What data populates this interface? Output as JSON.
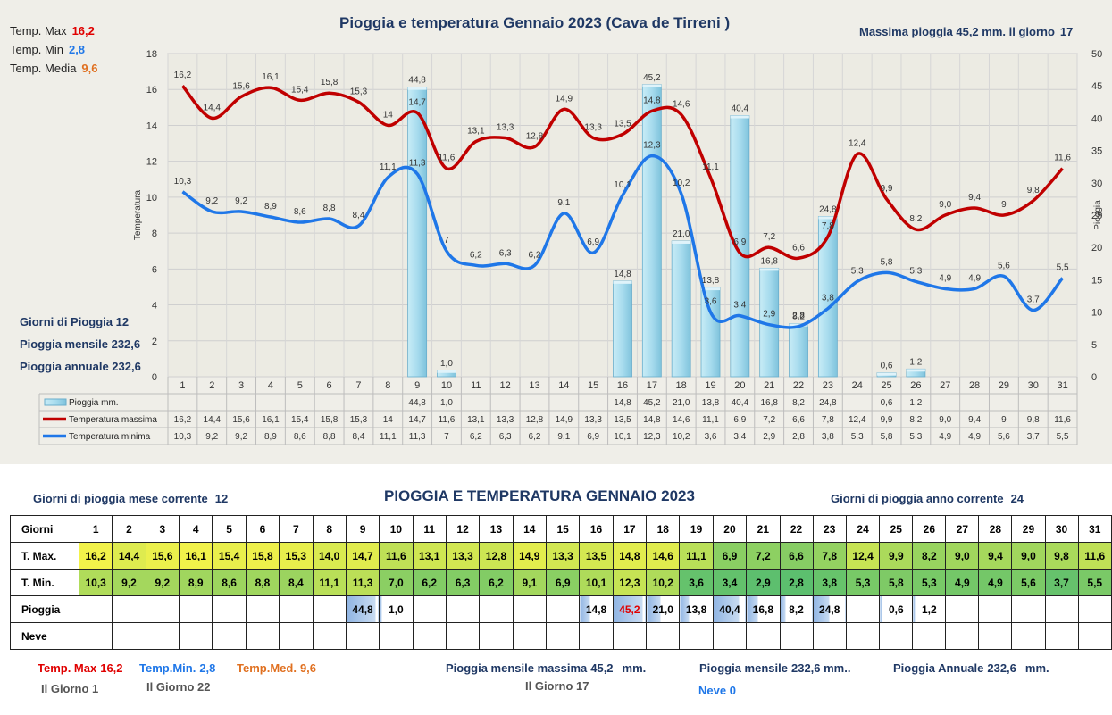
{
  "chart_data": {
    "type": "bar",
    "title": "Pioggia e temperatura Gennaio 2023 (Cava de Tirreni )",
    "categories": [
      "1",
      "2",
      "3",
      "4",
      "5",
      "6",
      "7",
      "8",
      "9",
      "10",
      "11",
      "12",
      "13",
      "14",
      "15",
      "16",
      "17",
      "18",
      "19",
      "20",
      "21",
      "22",
      "23",
      "24",
      "25",
      "26",
      "27",
      "28",
      "29",
      "30",
      "31"
    ],
    "ylabel": "Temperatura",
    "y2label": "Pioggia",
    "ylim": [
      0,
      18
    ],
    "y2lim": [
      0,
      50
    ],
    "yticks": [
      "0",
      "2",
      "4",
      "6",
      "8",
      "10",
      "12",
      "14",
      "16",
      "18"
    ],
    "y2ticks": [
      "0",
      "5",
      "10",
      "15",
      "20",
      "25",
      "30",
      "35",
      "40",
      "45",
      "50"
    ],
    "grid": true,
    "series": [
      {
        "name": "Pioggia mm.",
        "kind": "bar",
        "axis": "right",
        "color": "#9fd6e8",
        "labels": [
          "",
          "",
          "",
          "",
          "",
          "",
          "",
          "",
          "44,8",
          "1,0",
          "",
          "",
          "",
          "",
          "",
          "14,8",
          "45,2",
          "21,0",
          "13,8",
          "40,4",
          "16,8",
          "8,2",
          "24,8",
          "",
          "0,6",
          "1,2",
          "",
          "",
          "",
          "",
          ""
        ],
        "values": [
          null,
          null,
          null,
          null,
          null,
          null,
          null,
          null,
          44.8,
          1.0,
          null,
          null,
          null,
          null,
          null,
          14.8,
          45.2,
          21.0,
          13.8,
          40.4,
          16.8,
          8.2,
          24.8,
          null,
          0.6,
          1.2,
          null,
          null,
          null,
          null,
          null
        ]
      },
      {
        "name": "Temperatura massima",
        "kind": "line",
        "axis": "left",
        "color": "#c00000",
        "labels": [
          "16,2",
          "14,4",
          "15,6",
          "16,1",
          "15,4",
          "15,8",
          "15,3",
          "14",
          "14,7",
          "11,6",
          "13,1",
          "13,3",
          "12,8",
          "14,9",
          "13,3",
          "13,5",
          "14,8",
          "14,6",
          "11,1",
          "6,9",
          "7,2",
          "6,6",
          "7,8",
          "12,4",
          "9,9",
          "8,2",
          "9,0",
          "9,4",
          "9",
          "9,8",
          "11,6"
        ],
        "values": [
          16.2,
          14.4,
          15.6,
          16.1,
          15.4,
          15.8,
          15.3,
          14,
          14.7,
          11.6,
          13.1,
          13.3,
          12.8,
          14.9,
          13.3,
          13.5,
          14.8,
          14.6,
          11.1,
          6.9,
          7.2,
          6.6,
          7.8,
          12.4,
          9.9,
          8.2,
          9.0,
          9.4,
          9,
          9.8,
          11.6
        ]
      },
      {
        "name": "Temperatura minima",
        "kind": "line",
        "axis": "left",
        "color": "#1f77e8",
        "labels": [
          "10,3",
          "9,2",
          "9,2",
          "8,9",
          "8,6",
          "8,8",
          "8,4",
          "11,1",
          "11,3",
          "7",
          "6,2",
          "6,3",
          "6,2",
          "9,1",
          "6,9",
          "10,1",
          "12,3",
          "10,2",
          "3,6",
          "3,4",
          "2,9",
          "2,8",
          "3,8",
          "5,3",
          "5,8",
          "5,3",
          "4,9",
          "4,9",
          "5,6",
          "3,7",
          "5,5"
        ],
        "values": [
          10.3,
          9.2,
          9.2,
          8.9,
          8.6,
          8.8,
          8.4,
          11.1,
          11.3,
          7,
          6.2,
          6.3,
          6.2,
          9.1,
          6.9,
          10.1,
          12.3,
          10.2,
          3.6,
          3.4,
          2.9,
          2.8,
          3.8,
          5.3,
          5.8,
          5.3,
          4.9,
          4.9,
          5.6,
          3.7,
          5.5
        ]
      }
    ]
  },
  "summary": {
    "tmax_label": "Temp. Max",
    "tmax_value": "16,2",
    "tmin_label": "Temp. Min",
    "tmin_value": "2,8",
    "tmed_label": "Temp. Media",
    "tmed_value": "9,6",
    "max_rain_text": "Massima pioggia  45,2 mm. il giorno",
    "max_rain_day": "17",
    "rain_days_text": "Giorni di Pioggia  12",
    "monthly_rain_text": "Pioggia mensile  232,6",
    "annual_rain_text": "Pioggia annuale  232,6"
  },
  "table": {
    "title": "PIOGGIA E TEMPERATURA GENNAIO 2023",
    "rain_days_month_label": "Giorni di pioggia mese corrente",
    "rain_days_month": "12",
    "rain_days_year_label": "Giorni di pioggia anno corrente",
    "rain_days_year": "24",
    "row_labels": [
      "Giorni",
      "T. Max.",
      "T. Min.",
      "Pioggia",
      "Neve"
    ],
    "days": [
      "1",
      "2",
      "3",
      "4",
      "5",
      "6",
      "7",
      "8",
      "9",
      "10",
      "11",
      "12",
      "13",
      "14",
      "15",
      "16",
      "17",
      "18",
      "19",
      "20",
      "21",
      "22",
      "23",
      "24",
      "25",
      "26",
      "27",
      "28",
      "29",
      "30",
      "31"
    ],
    "tmax": [
      "16,2",
      "14,4",
      "15,6",
      "16,1",
      "15,4",
      "15,8",
      "15,3",
      "14,0",
      "14,7",
      "11,6",
      "13,1",
      "13,3",
      "12,8",
      "14,9",
      "13,3",
      "13,5",
      "14,8",
      "14,6",
      "11,1",
      "6,9",
      "7,2",
      "6,6",
      "7,8",
      "12,4",
      "9,9",
      "8,2",
      "9,0",
      "9,4",
      "9,0",
      "9,8",
      "11,6"
    ],
    "tmin": [
      "10,3",
      "9,2",
      "9,2",
      "8,9",
      "8,6",
      "8,8",
      "8,4",
      "11,1",
      "11,3",
      "7,0",
      "6,2",
      "6,3",
      "6,2",
      "9,1",
      "6,9",
      "10,1",
      "12,3",
      "10,2",
      "3,6",
      "3,4",
      "2,9",
      "2,8",
      "3,8",
      "5,3",
      "5,8",
      "5,3",
      "4,9",
      "4,9",
      "5,6",
      "3,7",
      "5,5"
    ],
    "rain": [
      "",
      "",
      "",
      "",
      "",
      "",
      "",
      "",
      "44,8",
      "1,0",
      "",
      "",
      "",
      "",
      "",
      "14,8",
      "45,2",
      "21,0",
      "13,8",
      "40,4",
      "16,8",
      "8,2",
      "24,8",
      "",
      "0,6",
      "1,2",
      "",
      "",
      "",
      "",
      ""
    ],
    "snow": [
      "",
      "",
      "",
      "",
      "",
      "",
      "",
      "",
      "",
      "",
      "",
      "",
      "",
      "",
      "",
      "",
      "",
      "",
      "",
      "",
      "",
      "",
      "",
      "",
      "",
      "",
      "",
      "",
      "",
      "",
      ""
    ]
  },
  "footer": {
    "tmax_label": "Temp. Max",
    "tmax_value": "16,2",
    "tmax_day": "Il Giorno  1",
    "tmin_label": "Temp.Min.",
    "tmin_value": "2,8",
    "tmin_day": "Il Giorno 22",
    "tmed_label": "Temp.Med.",
    "tmed_value": "9,6",
    "max_month_label": "Pioggia mensile massima",
    "max_month_value": "45,2",
    "max_month_unit": "mm.",
    "max_month_day": "Il Giorno 17",
    "monthly_label": "Pioggia mensile",
    "monthly_value": "232,6 mm..",
    "snow_text": "Neve 0",
    "annual_label": "Pioggia Annuale",
    "annual_value": "232,6",
    "annual_unit": "mm."
  },
  "colors": {
    "tmax": "#c00000",
    "tmin": "#1f77e8",
    "tmed": "#e07020",
    "navy": "#1f3864",
    "rain_bar": "#9fd6e8"
  }
}
